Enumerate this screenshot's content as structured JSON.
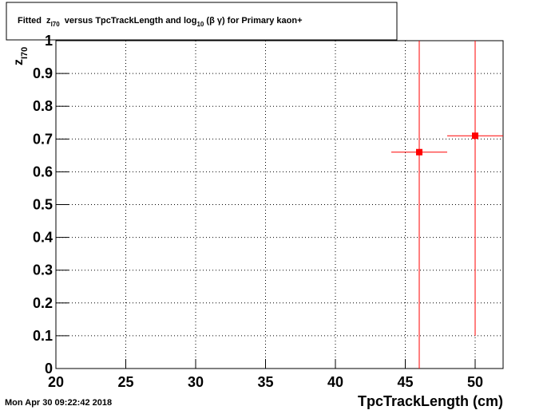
{
  "chart_data": {
    "type": "scatter",
    "title": [
      "Fitted  z",
      "I70",
      "  versus TpcTrackLength and log",
      "10",
      " (β γ) for Primary kaon+"
    ],
    "ylabel": [
      "z",
      "I70"
    ],
    "xlabel": "TpcTrackLength (cm)",
    "timestamp": "Mon Apr 30 09:22:42 2018",
    "xlim": [
      20,
      52
    ],
    "xticks": [
      20,
      25,
      30,
      35,
      40,
      45,
      50
    ],
    "ylim": [
      0,
      1
    ],
    "yticks": [
      0,
      0.1,
      0.2,
      0.3,
      0.4,
      0.5,
      0.6,
      0.7,
      0.8,
      0.9,
      1
    ],
    "grid": true,
    "series": [
      {
        "color": "#ff0000",
        "x": [
          46,
          50
        ],
        "values": [
          0.66,
          0.71
        ],
        "xerr": [
          2,
          2
        ],
        "yerr": [
          0.7,
          0.61
        ]
      }
    ]
  }
}
